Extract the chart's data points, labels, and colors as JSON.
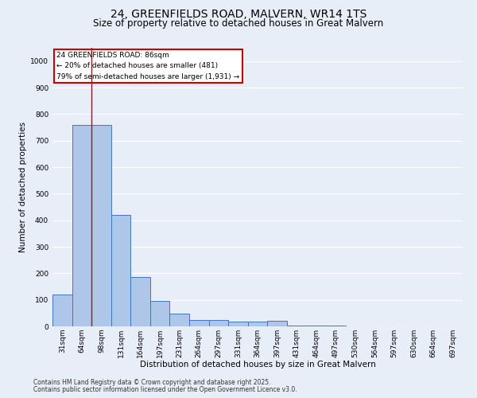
{
  "title_line1": "24, GREENFIELDS ROAD, MALVERN, WR14 1TS",
  "title_line2": "Size of property relative to detached houses in Great Malvern",
  "xlabel": "Distribution of detached houses by size in Great Malvern",
  "ylabel": "Number of detached properties",
  "categories": [
    "31sqm",
    "64sqm",
    "98sqm",
    "131sqm",
    "164sqm",
    "197sqm",
    "231sqm",
    "264sqm",
    "297sqm",
    "331sqm",
    "364sqm",
    "397sqm",
    "431sqm",
    "464sqm",
    "497sqm",
    "530sqm",
    "564sqm",
    "597sqm",
    "630sqm",
    "664sqm",
    "697sqm"
  ],
  "values": [
    120,
    760,
    760,
    420,
    185,
    97,
    48,
    25,
    25,
    18,
    17,
    20,
    4,
    3,
    2,
    1,
    0,
    0,
    0,
    0,
    0
  ],
  "bar_color": "#aec6e8",
  "bar_edge_color": "#4472c4",
  "vline_x": 1.5,
  "vline_color": "#cc0000",
  "annotation_box_text": "24 GREENFIELDS ROAD: 86sqm\n← 20% of detached houses are smaller (481)\n79% of semi-detached houses are larger (1,931) →",
  "annotation_box_color": "#cc0000",
  "annotation_box_fill": "#ffffff",
  "ylim": [
    0,
    1050
  ],
  "yticks": [
    0,
    100,
    200,
    300,
    400,
    500,
    600,
    700,
    800,
    900,
    1000
  ],
  "footnote_line1": "Contains HM Land Registry data © Crown copyright and database right 2025.",
  "footnote_line2": "Contains public sector information licensed under the Open Government Licence v3.0.",
  "bg_color": "#e8eef8",
  "grid_color": "#ffffff",
  "title_fontsize": 10,
  "subtitle_fontsize": 8.5,
  "axis_label_fontsize": 7.5,
  "tick_fontsize": 6.5,
  "annotation_fontsize": 6.5,
  "footnote_fontsize": 5.5
}
